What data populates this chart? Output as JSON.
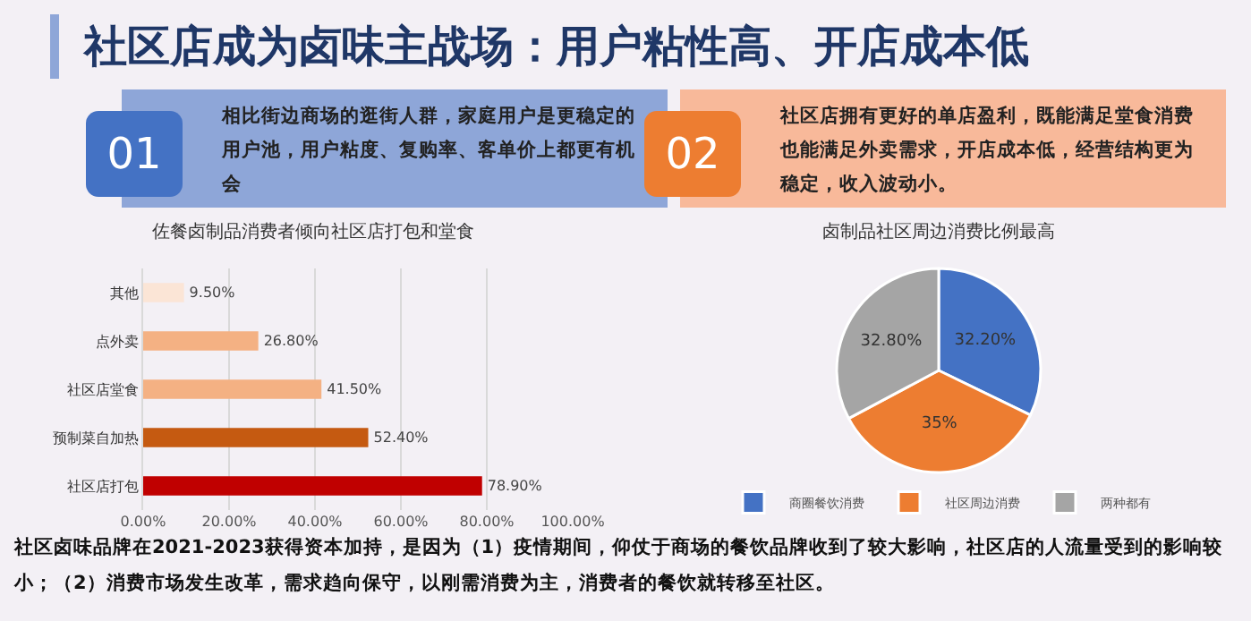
{
  "chart_data": [
    {
      "type": "other",
      "title": "社区店成为卤味主战场：用户粘性高、开店成本低",
      "annotations": [
        "01",
        "相比街边商场的逛街人群，家庭用户是更稳定的用户池，用户粘度、复购率、客单价上都更有机会",
        "02",
        "社区店拥有更好的单店盈利，既能满足堂食消费也能满足外卖需求，开店成本低，经营结构更为稳定，收入波动小。",
        "社区卤味品牌在2021-2023获得资本加持，是因为（1）疫情期间，仰仗于商场的餐饮品牌收到了较大影响，社区店的人流量受到的影响较小；（2）消费市场发生改革，需求趋向保守，以刚需消费为主，消费者的餐饮就转移至社区。"
      ]
    },
    {
      "type": "bar",
      "orientation": "horizontal",
      "title": "佐餐卤制品消费者倾向社区店打包和堂食",
      "categories": [
        "其他",
        "点外卖",
        "社区店堂食",
        "预制菜自加热",
        "社区店打包"
      ],
      "values": [
        9.5,
        26.8,
        41.5,
        52.4,
        78.9
      ],
      "value_labels": [
        "9.50%",
        "26.80%",
        "41.50%",
        "52.40%",
        "78.90%"
      ],
      "colors": [
        "#fbe5d6",
        "#f4b183",
        "#f4b183",
        "#c55a11",
        "#c00000"
      ],
      "xlim": [
        0,
        100
      ],
      "xticks": [
        {
          "value": 0,
          "label": "0.00%"
        },
        {
          "value": 20,
          "label": "20.00%"
        },
        {
          "value": 40,
          "label": "40.00%"
        },
        {
          "value": 60,
          "label": "60.00%"
        },
        {
          "value": 80,
          "label": "80.00%"
        },
        {
          "value": 100,
          "label": "100.00%"
        }
      ],
      "grid": "x"
    },
    {
      "type": "pie",
      "title": "卤制品社区周边消费比例最高",
      "categories": [
        "商圈餐饮消费",
        "社区周边消费",
        "两种都有"
      ],
      "values": [
        32.2,
        35,
        32.8
      ],
      "value_labels": [
        "32.20%",
        "35%",
        "32.80%"
      ],
      "colors": [
        "#4472c4",
        "#ed7d31",
        "#a5a5a5"
      ],
      "legend": "bottom"
    }
  ]
}
